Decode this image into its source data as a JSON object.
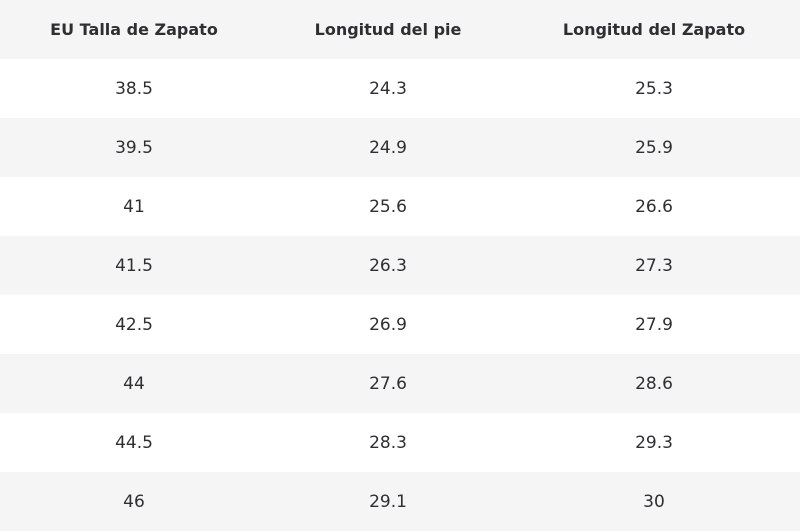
{
  "table": {
    "header": [
      "EU Talla de Zapato",
      "Longitud del pie",
      "Longitud del Zapato"
    ],
    "rows": [
      [
        "38.5",
        "24.3",
        "25.3"
      ],
      [
        "39.5",
        "24.9",
        "25.9"
      ],
      [
        "41",
        "25.6",
        "26.6"
      ],
      [
        "41.5",
        "26.3",
        "27.3"
      ],
      [
        "42.5",
        "26.9",
        "27.9"
      ],
      [
        "44",
        "27.6",
        "28.6"
      ],
      [
        "44.5",
        "28.3",
        "29.3"
      ],
      [
        "46",
        "29.1",
        "30"
      ]
    ]
  }
}
